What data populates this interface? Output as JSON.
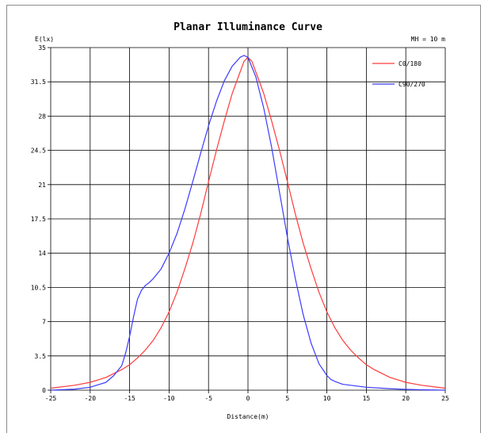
{
  "chart_data": {
    "type": "line",
    "title": "Planar Illuminance Curve",
    "ylabel": "E(lx)",
    "xlabel": "Distance(m)",
    "annotation": "MH = 10 m",
    "xlim": [
      -25,
      25
    ],
    "ylim": [
      0,
      35
    ],
    "x_ticks": [
      "-25",
      "-20",
      "-15",
      "-10",
      "-5",
      "0",
      "5",
      "10",
      "15",
      "20",
      "25"
    ],
    "y_ticks": [
      "0",
      "3.5",
      "7",
      "10.5",
      "14",
      "17.5",
      "21",
      "24.5",
      "28",
      "31.5",
      "35"
    ],
    "grid": true,
    "legend_position": "top-right",
    "series": [
      {
        "name": "C0/180",
        "color": "#ff3b3b",
        "x": [
          -25,
          -22,
          -20,
          -18,
          -16,
          -15,
          -14,
          -13,
          -12,
          -11,
          -10,
          -9,
          -8,
          -7,
          -6,
          -5,
          -4,
          -3,
          -2,
          -1,
          -0.5,
          0,
          0.5,
          1,
          2,
          3,
          4,
          5,
          6,
          7,
          8,
          9,
          10,
          11,
          12,
          13,
          14,
          15,
          16,
          18,
          20,
          22,
          25
        ],
        "y": [
          0.2,
          0.5,
          0.8,
          1.3,
          2.1,
          2.6,
          3.3,
          4.1,
          5.1,
          6.4,
          8.0,
          10.0,
          12.4,
          15.0,
          18.0,
          21.3,
          24.5,
          27.5,
          30.3,
          32.5,
          33.6,
          34.0,
          33.6,
          32.5,
          30.3,
          27.5,
          24.5,
          21.3,
          18.0,
          15.0,
          12.4,
          10.0,
          8.0,
          6.4,
          5.1,
          4.1,
          3.3,
          2.6,
          2.1,
          1.3,
          0.8,
          0.5,
          0.2
        ]
      },
      {
        "name": "C90/270",
        "color": "#3b3bff",
        "x": [
          -25,
          -22,
          -20,
          -18,
          -17,
          -16,
          -15.5,
          -15,
          -14.5,
          -14,
          -13.5,
          -13,
          -12.5,
          -12,
          -11,
          -10,
          -9,
          -8,
          -7,
          -6,
          -5,
          -4,
          -3,
          -2,
          -1,
          -0.5,
          0,
          1,
          2,
          3,
          4,
          5,
          6,
          7,
          8,
          9,
          10,
          10.5,
          11,
          12,
          13,
          15,
          18,
          20,
          22,
          25
        ],
        "y": [
          0,
          0.1,
          0.3,
          0.8,
          1.5,
          2.5,
          3.8,
          5.5,
          7.5,
          9.3,
          10.2,
          10.7,
          11.0,
          11.4,
          12.4,
          14.0,
          16.0,
          18.5,
          21.3,
          24.2,
          27.0,
          29.5,
          31.6,
          33.1,
          34.0,
          34.2,
          34.0,
          32.0,
          28.8,
          24.8,
          20.2,
          15.6,
          11.4,
          7.7,
          4.8,
          2.7,
          1.5,
          1.1,
          0.9,
          0.6,
          0.5,
          0.3,
          0.15,
          0.08,
          0.04,
          0
        ]
      }
    ]
  }
}
